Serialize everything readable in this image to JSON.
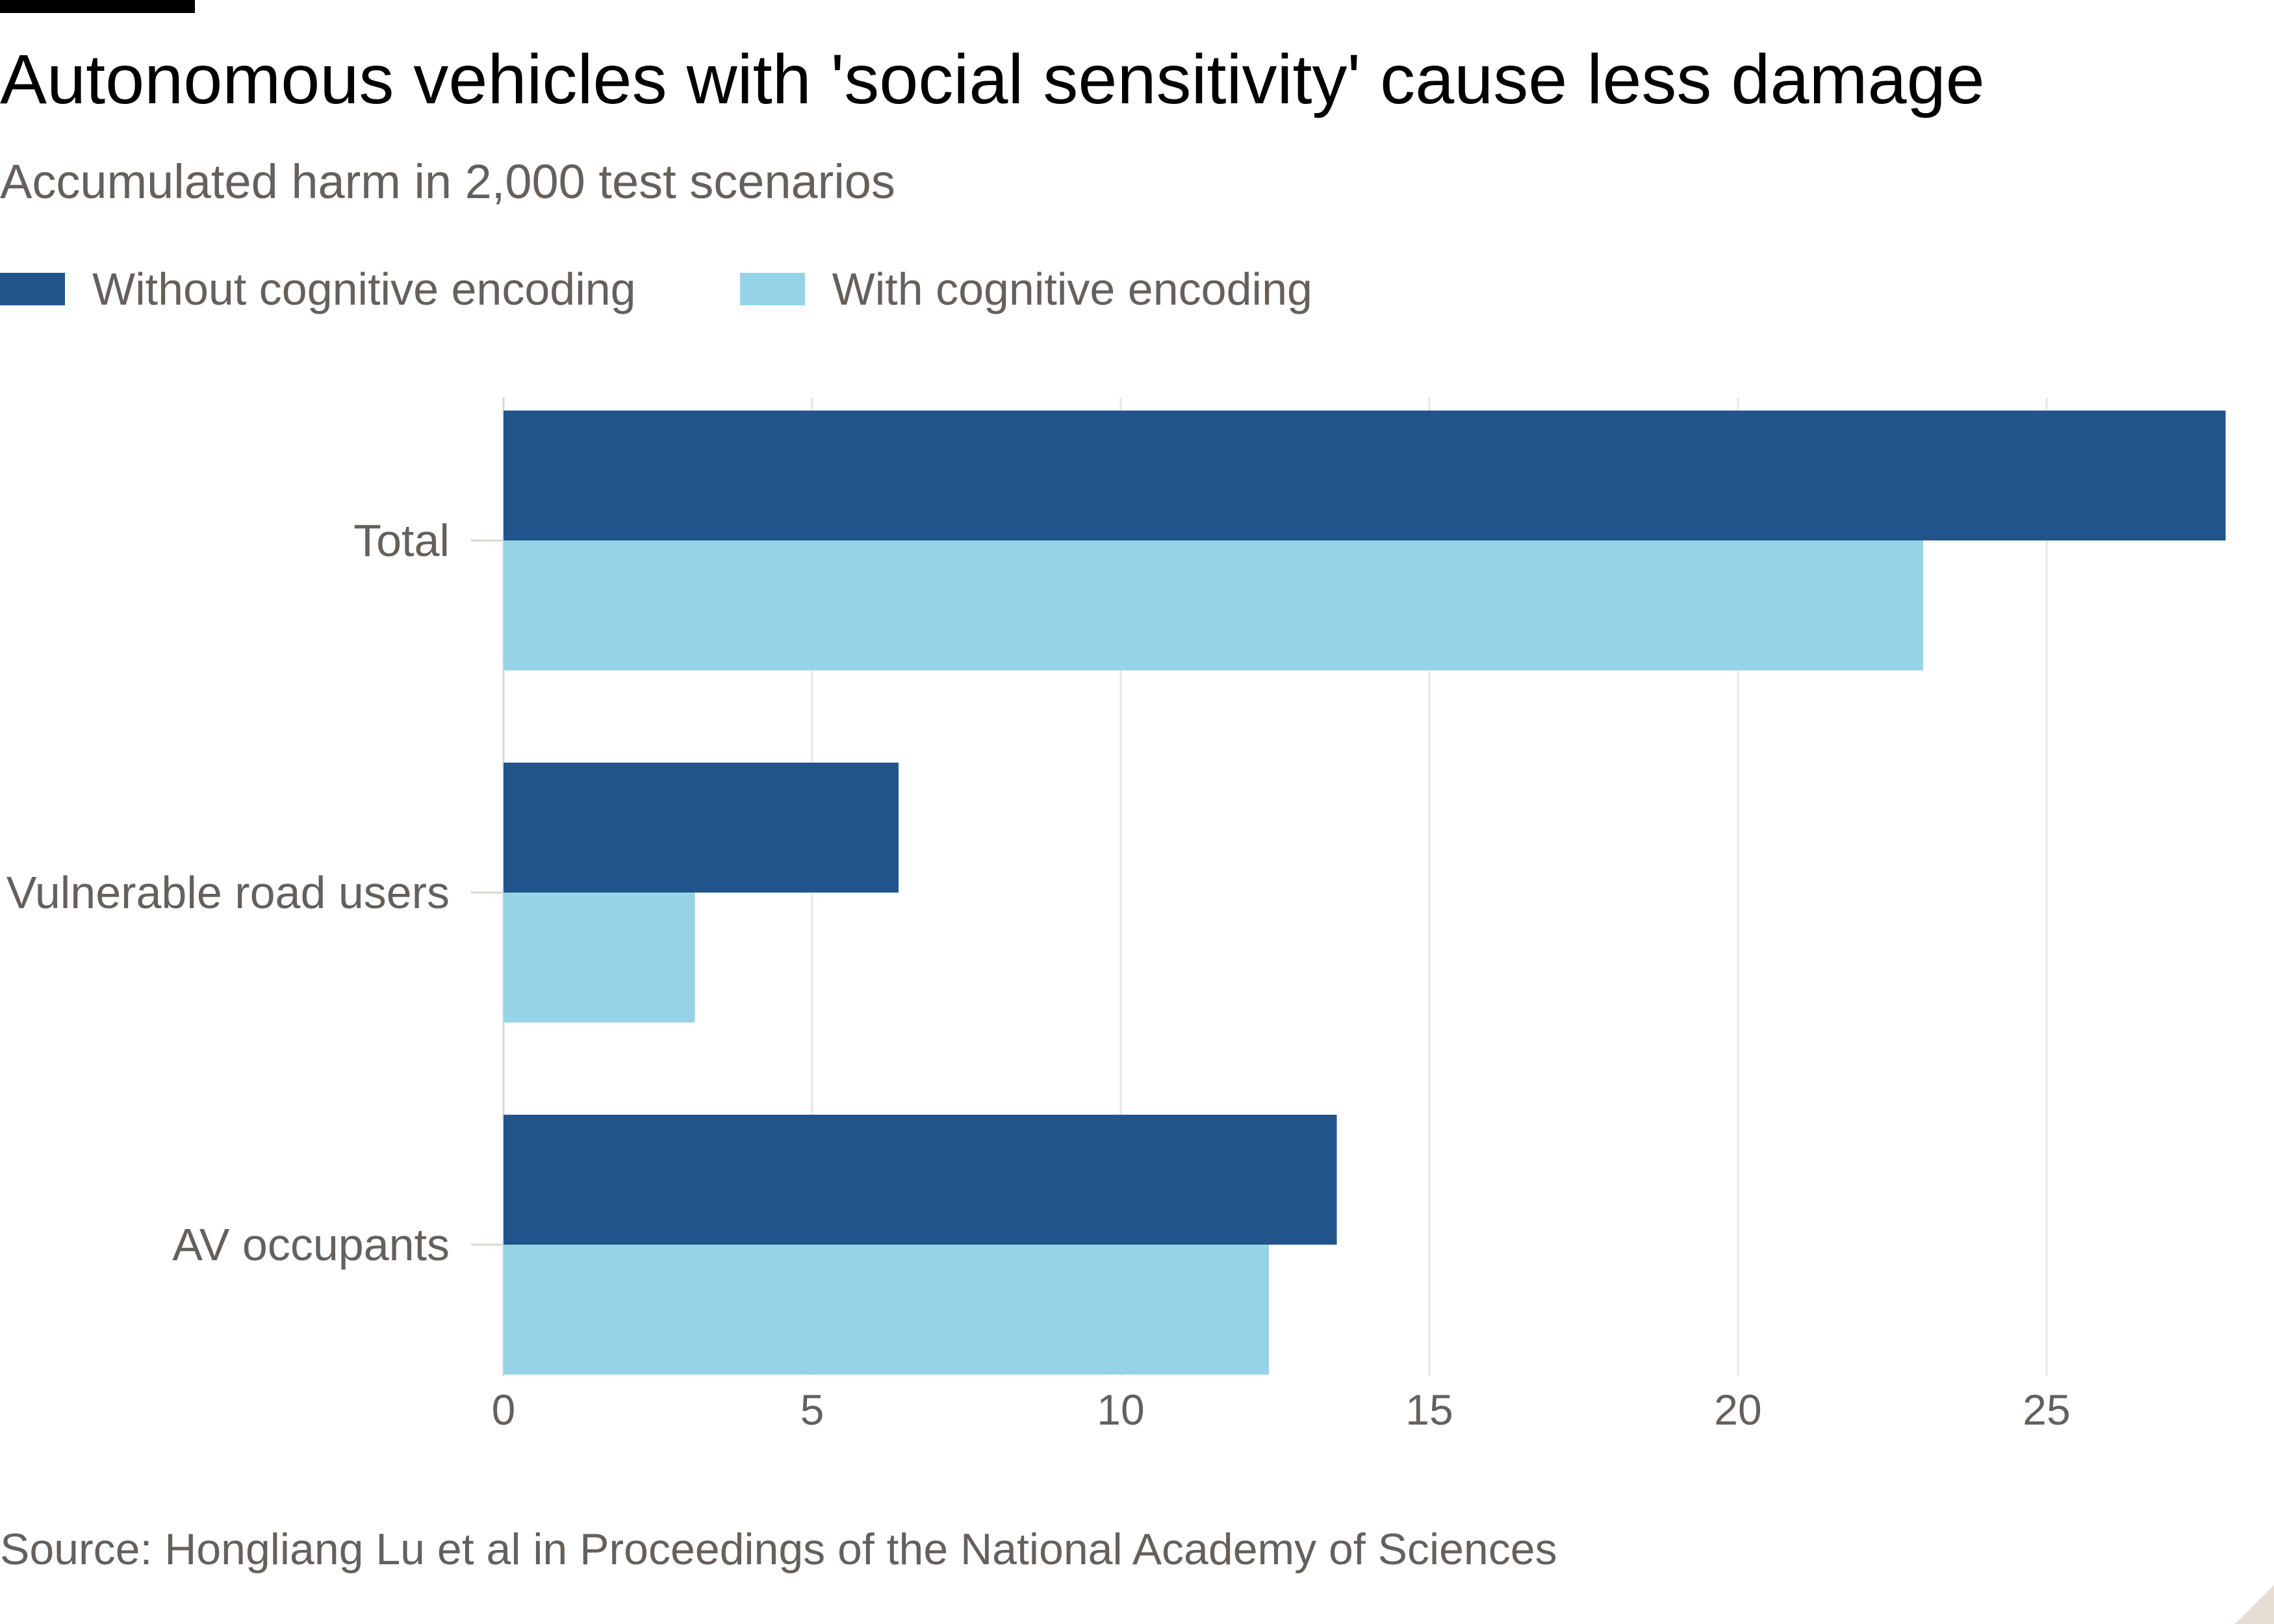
{
  "colors": {
    "without": "#21548a",
    "with": "#96d3e6",
    "grid": "#e9e6e2",
    "text_muted": "#66605c"
  },
  "header": {
    "title": "Autonomous vehicles with 'social sensitivity' cause less damage",
    "subtitle": "Accumulated harm in 2,000 test scenarios"
  },
  "legend": {
    "without_label": "Without cognitive encoding",
    "with_label": "With cognitive encoding"
  },
  "footer": {
    "source": "Source: Hongliang Lu et al in Proceedings of the National Academy of Sciences"
  },
  "chart_data": {
    "type": "bar",
    "orientation": "horizontal",
    "title": "Autonomous vehicles with 'social sensitivity' cause less damage",
    "subtitle": "Accumulated harm in 2,000 test scenarios",
    "xlabel": "",
    "ylabel": "",
    "categories": [
      "Total",
      "Vulnerable road users",
      "AV occupants"
    ],
    "series": [
      {
        "name": "Without cognitive encoding",
        "values": [
          27.9,
          6.4,
          13.5
        ]
      },
      {
        "name": "With cognitive encoding",
        "values": [
          23.0,
          3.1,
          12.4
        ]
      }
    ],
    "xlim": [
      0,
      28
    ],
    "xticks": [
      0,
      5,
      10,
      15,
      20,
      25
    ],
    "grid": true,
    "legend_position": "top-left"
  }
}
